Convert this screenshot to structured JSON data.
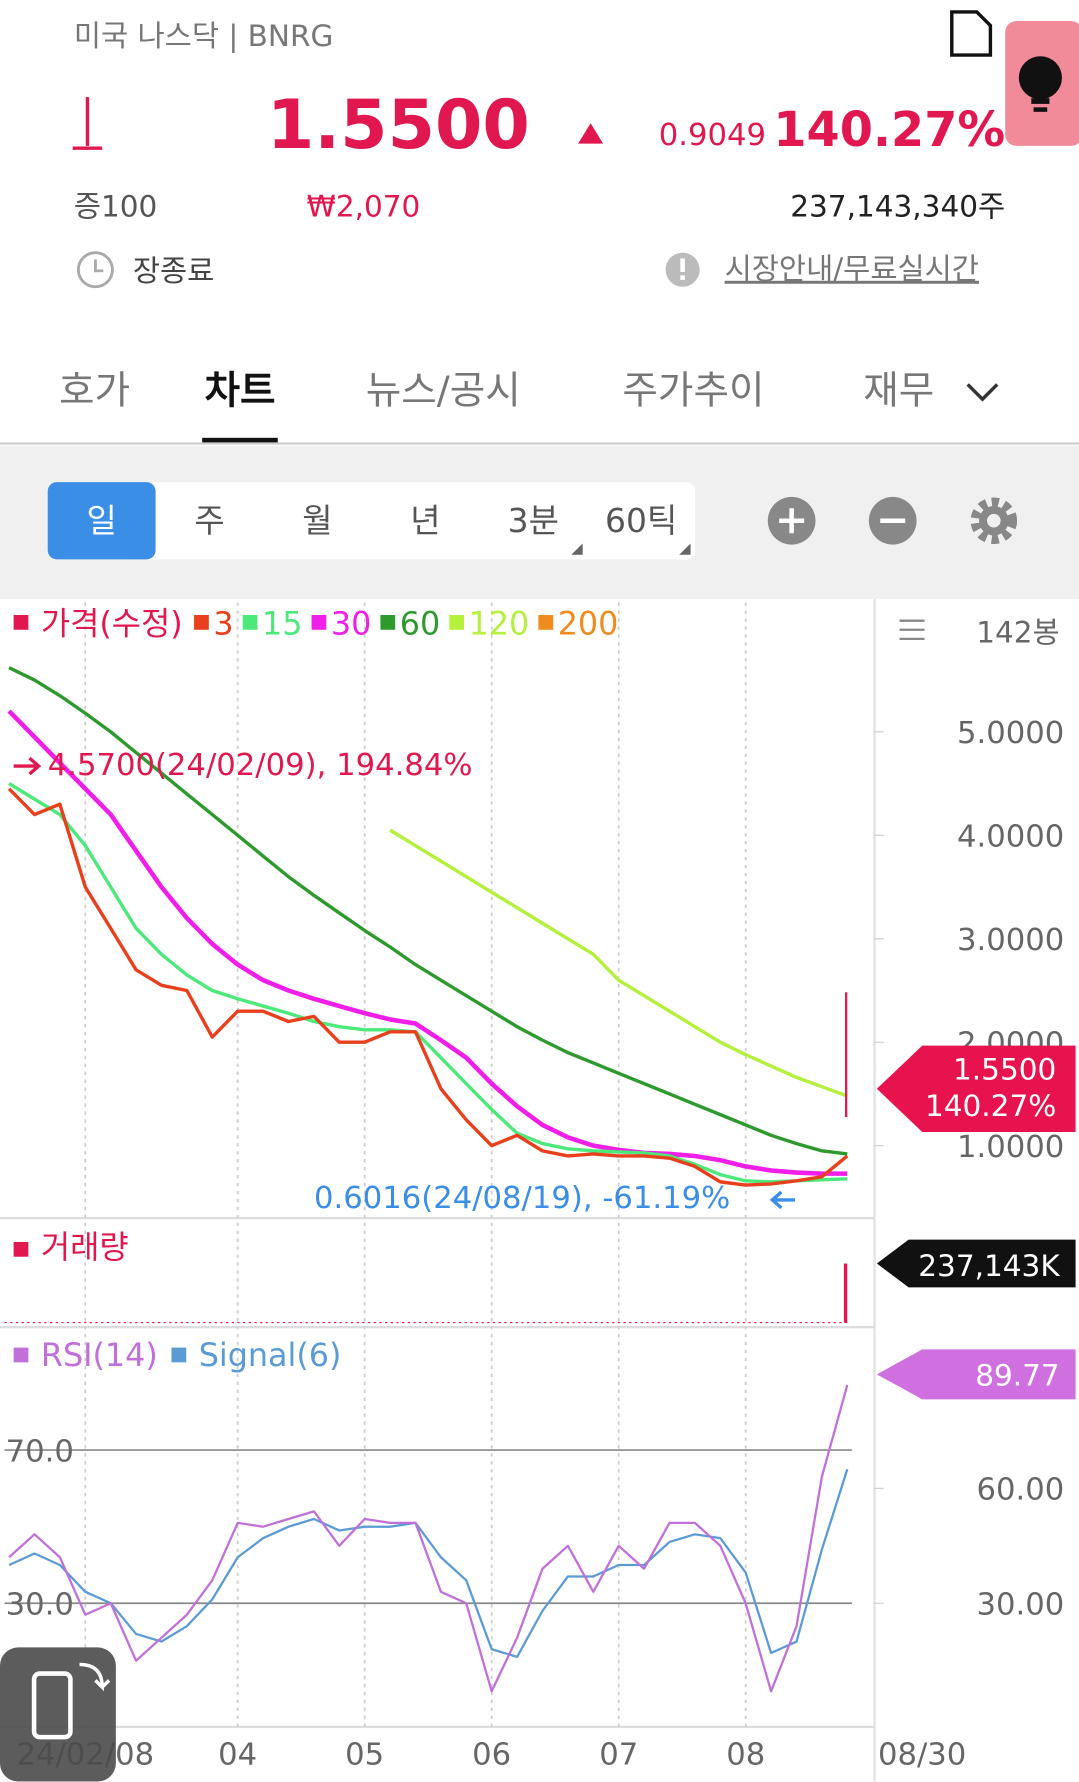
{
  "header": {
    "market": "미국 나스닥 | BNRG",
    "price": "1.5500",
    "change": "0.9049",
    "change_pct": "140.27%",
    "margin": "증100",
    "krw_price": "₩2,070",
    "volume": "237,143,340주",
    "status": "장종료",
    "notice": "시장안내/무료실시간"
  },
  "tabs": [
    "호가",
    "차트",
    "뉴스/공시",
    "주가추이",
    "재무"
  ],
  "selected_tab": 1,
  "periods": [
    "일",
    "주",
    "월",
    "년",
    "3분",
    "60틱"
  ],
  "selected_period": 0,
  "chart_data": {
    "type": "line",
    "legend_title": "가격(수정)",
    "legend_title_color": "#e0184f",
    "bar_count": "142봉",
    "categories": [
      null,
      null,
      null,
      "24/02/08",
      null,
      null,
      null,
      null,
      null,
      "04",
      null,
      null,
      null,
      null,
      "05",
      null,
      null,
      null,
      null,
      "06",
      null,
      null,
      null,
      null,
      "07",
      null,
      null,
      null,
      null,
      "08",
      null,
      null,
      null,
      null
    ],
    "x_end_label": "08/30",
    "ylim": [
      0.3,
      6.25
    ],
    "yticks": [
      {
        "value": 1,
        "label": "1.0000"
      },
      {
        "value": 2,
        "label": "2.0000"
      },
      {
        "value": 3,
        "label": "3.0000"
      },
      {
        "value": 4,
        "label": "4.0000"
      },
      {
        "value": 5,
        "label": "5.0000"
      }
    ],
    "series": [
      {
        "name": "3",
        "color": "#e8401c",
        "values": [
          4.45,
          4.2,
          4.3,
          3.5,
          3.1,
          2.7,
          2.55,
          2.5,
          2.05,
          2.3,
          2.3,
          2.2,
          2.25,
          2.0,
          2.0,
          2.1,
          2.1,
          1.55,
          1.25,
          1.0,
          1.1,
          0.95,
          0.9,
          0.92,
          0.9,
          0.9,
          0.88,
          0.8,
          0.65,
          0.62,
          0.63,
          0.66,
          0.7,
          0.9
        ]
      },
      {
        "name": "15",
        "color": "#4de87a",
        "values": [
          4.5,
          4.35,
          4.2,
          3.9,
          3.5,
          3.1,
          2.85,
          2.65,
          2.5,
          2.42,
          2.35,
          2.28,
          2.2,
          2.15,
          2.12,
          2.12,
          2.1,
          1.85,
          1.6,
          1.35,
          1.12,
          1.02,
          0.97,
          0.95,
          0.94,
          0.93,
          0.9,
          0.82,
          0.72,
          0.66,
          0.65,
          0.66,
          0.67,
          0.68
        ]
      },
      {
        "name": "30",
        "color": "#f01ee8",
        "values": [
          5.2,
          4.95,
          4.7,
          4.45,
          4.2,
          3.85,
          3.5,
          3.2,
          2.95,
          2.75,
          2.6,
          2.5,
          2.42,
          2.35,
          2.28,
          2.22,
          2.18,
          2.02,
          1.85,
          1.6,
          1.38,
          1.2,
          1.08,
          1.0,
          0.96,
          0.93,
          0.92,
          0.9,
          0.86,
          0.8,
          0.76,
          0.74,
          0.73,
          0.73
        ]
      },
      {
        "name": "60",
        "color": "#2e9a2e",
        "values": [
          5.62,
          5.5,
          5.35,
          5.18,
          5.0,
          4.8,
          4.6,
          4.4,
          4.2,
          4.0,
          3.8,
          3.6,
          3.42,
          3.25,
          3.08,
          2.92,
          2.75,
          2.6,
          2.45,
          2.3,
          2.15,
          2.02,
          1.9,
          1.8,
          1.7,
          1.6,
          1.5,
          1.4,
          1.3,
          1.2,
          1.1,
          1.02,
          0.95,
          0.92
        ]
      },
      {
        "name": "120",
        "color": "#b4f03c",
        "values": [
          null,
          null,
          null,
          null,
          null,
          null,
          null,
          null,
          null,
          null,
          null,
          null,
          null,
          null,
          null,
          4.05,
          3.9,
          3.75,
          3.6,
          3.45,
          3.3,
          3.15,
          3.0,
          2.85,
          2.6,
          2.45,
          2.3,
          2.15,
          2.0,
          1.88,
          1.77,
          1.66,
          1.57,
          1.48
        ]
      },
      {
        "name": "200",
        "color": "#f08c1e",
        "values": [
          null,
          null,
          null,
          null,
          null,
          null,
          null,
          null,
          null,
          null,
          null,
          null,
          null,
          null,
          null,
          null,
          null,
          null,
          null,
          null,
          null,
          null,
          null,
          null,
          null,
          null,
          null,
          null,
          null,
          null,
          null,
          null,
          null,
          null
        ]
      }
    ],
    "high_note": "4.5700(24/02/09), 194.84%",
    "low_note": "0.6016(24/08/19), -61.19%",
    "last": {
      "value": 1.55,
      "label": "1.5500",
      "change_label": "140.27%"
    },
    "volume_panel": {
      "title": "거래량",
      "last": {
        "value": 237143,
        "label": "237,143K"
      }
    },
    "rsi_panel": {
      "ylim": [
        -2.3,
        101.5
      ],
      "yticks": [
        {
          "value": 60,
          "label": "60.00"
        },
        {
          "value": 30,
          "label": "30.00"
        }
      ],
      "guides": [
        {
          "value": 70,
          "label": "70.0"
        },
        {
          "value": 30,
          "label": "30.0"
        }
      ],
      "series": [
        {
          "name": "RSI(14)",
          "color": "#c070d8",
          "values": [
            42,
            48,
            42,
            27,
            30,
            15,
            21,
            27,
            36,
            51,
            50,
            52,
            54,
            45,
            52,
            51,
            51,
            33,
            30,
            7,
            21,
            39,
            45,
            33,
            45,
            39,
            51,
            51,
            45,
            30,
            7,
            24,
            63,
            87
          ]
        },
        {
          "name": "Signal(6)",
          "color": "#5b9bd5",
          "values": [
            40,
            43,
            40,
            33,
            30,
            22,
            20,
            24,
            31,
            42,
            47,
            50,
            52,
            49,
            50,
            50,
            51,
            42,
            36,
            18,
            16,
            28,
            37,
            37,
            40,
            40,
            46,
            48,
            47,
            38,
            17,
            20,
            44,
            65
          ]
        }
      ],
      "last": {
        "value": 89.77,
        "label": "89.77"
      }
    }
  }
}
